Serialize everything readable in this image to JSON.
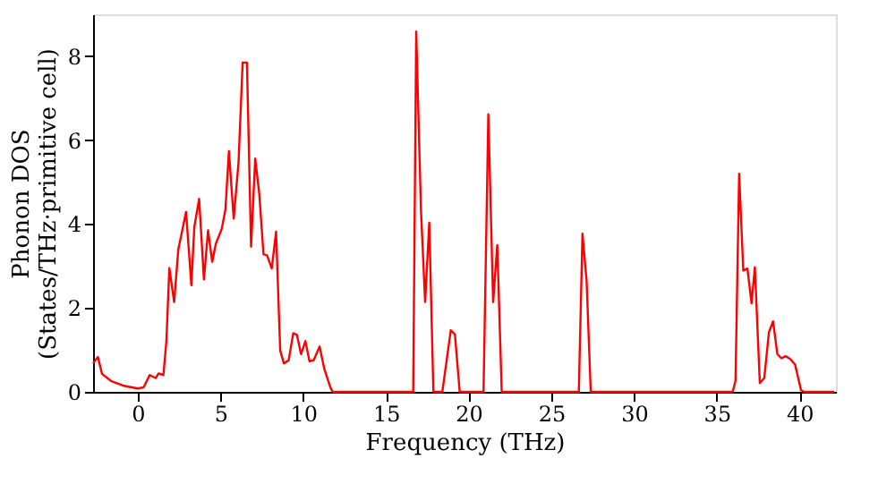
{
  "chart_data": {
    "type": "line",
    "xlabel": "Frequency (THz)",
    "ylabel": "Phonon DOS\n(States/THz·primitive cell)",
    "xlim": [
      -2.7,
      42.2
    ],
    "ylim": [
      0,
      9.0
    ],
    "xticks": [
      0,
      5,
      10,
      15,
      20,
      25,
      30,
      35,
      40
    ],
    "yticks": [
      0,
      2,
      4,
      6,
      8
    ],
    "grid": false,
    "legend": false,
    "marker": "none",
    "line_style": "solid",
    "x": [
      -2.7,
      -2.41,
      -2.16,
      -1.62,
      -0.9,
      0,
      0.36,
      0.72,
      1.08,
      1.26,
      1.55,
      1.73,
      1.91,
      2.2,
      2.45,
      2.92,
      3.24,
      3.42,
      3.71,
      4.0,
      4.25,
      4.5,
      4.72,
      5.08,
      5.3,
      5.51,
      5.8,
      6.09,
      6.34,
      6.6,
      6.85,
      7.1,
      7.35,
      7.6,
      7.82,
      8.1,
      8.36,
      8.61,
      8.83,
      9.12,
      9.4,
      9.62,
      9.87,
      10.13,
      10.38,
      10.63,
      10.99,
      11.28,
      11.64,
      11.78,
      16.65,
      16.83,
      17.12,
      17.37,
      17.62,
      17.87,
      18.41,
      18.92,
      19.17,
      19.46,
      20.9,
      21.19,
      21.48,
      21.73,
      22.0,
      26.66,
      26.88,
      27.13,
      27.38,
      35.96,
      36.13,
      36.35,
      36.6,
      36.85,
      37.1,
      37.3,
      37.6,
      37.87,
      38.15,
      38.4,
      38.66,
      38.9,
      39.16,
      39.45,
      39.73,
      40.09,
      40.27,
      42.1
    ],
    "series": [
      {
        "color": "#ff0000",
        "values": [
          0.68,
          0.83,
          0.43,
          0.26,
          0.15,
          0.08,
          0.11,
          0.4,
          0.33,
          0.44,
          0.4,
          1.2,
          2.95,
          2.14,
          3.39,
          4.29,
          2.54,
          3.93,
          4.6,
          2.68,
          3.85,
          3.1,
          3.53,
          3.89,
          4.35,
          5.74,
          4.13,
          5.46,
          7.85,
          7.85,
          3.46,
          5.56,
          4.7,
          3.28,
          3.25,
          2.94,
          3.82,
          0.99,
          0.68,
          0.75,
          1.4,
          1.36,
          0.9,
          1.21,
          0.73,
          0.75,
          1.08,
          0.54,
          0.11,
          0,
          0,
          8.59,
          4.32,
          2.14,
          4.03,
          0,
          0,
          1.47,
          1.37,
          0,
          0,
          6.62,
          2.14,
          3.5,
          0,
          0,
          3.77,
          2.65,
          0,
          0,
          0.26,
          5.2,
          2.89,
          2.94,
          2.11,
          2.97,
          0.21,
          0.33,
          1.42,
          1.68,
          0.9,
          0.8,
          0.85,
          0.78,
          0.65,
          0.04,
          0,
          0
        ]
      }
    ]
  }
}
